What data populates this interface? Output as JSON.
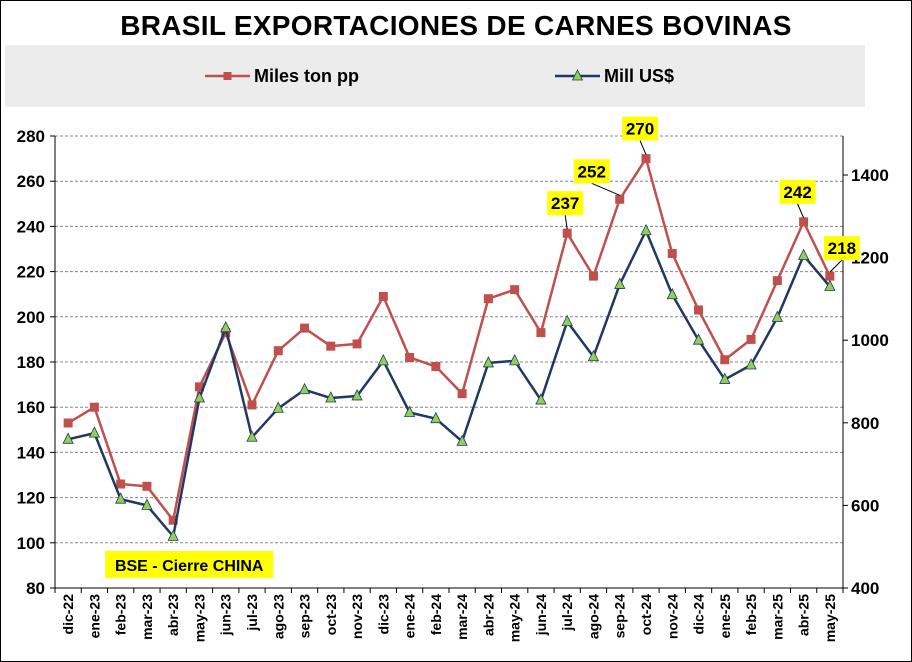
{
  "chart_data": {
    "type": "line",
    "title": "BRASIL EXPORTACIONES DE CARNES BOVINAS",
    "categories": [
      "dic-22",
      "ene-23",
      "feb-23",
      "mar-23",
      "abr-23",
      "may-23",
      "jun-23",
      "jul-23",
      "ago-23",
      "sep-23",
      "oct-23",
      "nov-23",
      "dic-23",
      "ene-24",
      "feb-24",
      "mar-24",
      "abr-24",
      "may-24",
      "jun-24",
      "jul-24",
      "ago-24",
      "sep-24",
      "oct-24",
      "nov-24",
      "dic-24",
      "ene-25",
      "feb-25",
      "mar-25",
      "abr-25",
      "may-25"
    ],
    "series": [
      {
        "name": "Miles ton pp",
        "axis": "left",
        "color": "#c0504d",
        "marker": "square",
        "values": [
          153,
          160,
          126,
          125,
          110,
          169,
          193,
          161,
          185,
          195,
          187,
          188,
          209,
          182,
          178,
          166,
          208,
          212,
          193,
          237,
          218,
          252,
          270,
          228,
          203,
          181,
          190,
          216,
          242,
          218
        ]
      },
      {
        "name": "Mill US$",
        "axis": "right",
        "color": "#1f3864",
        "marker": "triangle",
        "marker_fill": "#92d050",
        "values": [
          760,
          775,
          615,
          600,
          525,
          860,
          1030,
          765,
          835,
          880,
          860,
          865,
          950,
          825,
          810,
          755,
          945,
          950,
          855,
          1045,
          960,
          1135,
          1265,
          1110,
          1000,
          905,
          940,
          1055,
          1205,
          1130
        ]
      }
    ],
    "y_left": {
      "min": 80,
      "max": 280,
      "step": 20
    },
    "y_right": {
      "min": 400,
      "max": 1500,
      "ticks": [
        400,
        600,
        800,
        1000,
        1200,
        1400
      ]
    },
    "grid": true,
    "legend_position": "top",
    "callouts": [
      {
        "index": 19,
        "label": "237"
      },
      {
        "index": 21,
        "label": "252"
      },
      {
        "index": 22,
        "label": "270"
      },
      {
        "index": 28,
        "label": "242"
      },
      {
        "index": 29,
        "label": "218"
      }
    ],
    "annotation": "BSE - Cierre CHINA",
    "annotation_index": 4
  }
}
